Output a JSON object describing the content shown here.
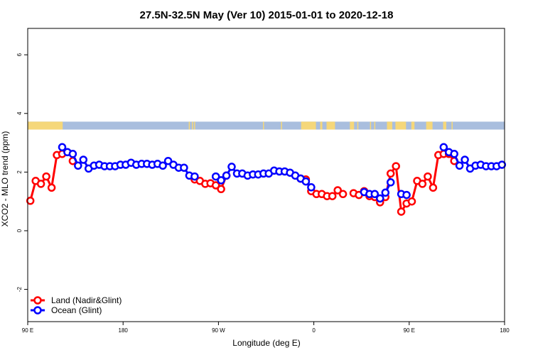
{
  "chart_data": {
    "type": "line",
    "title": "27.5N-32.5N May (Ver 10)   2015-01-01 to 2020-12-18",
    "xlabel": "Longitude (deg E)",
    "ylabel": "XCO2 - MLO trend (ppm)",
    "xlim": [
      90,
      540
    ],
    "ylim": [
      -3.1,
      6.9
    ],
    "xticks": [
      {
        "value": 90,
        "label": "90 E"
      },
      {
        "value": 180,
        "label": "180"
      },
      {
        "value": 270,
        "label": "90 W"
      },
      {
        "value": 360,
        "label": "0"
      },
      {
        "value": 450,
        "label": "90 E"
      },
      {
        "value": 540,
        "label": "180"
      }
    ],
    "yticks": [
      {
        "value": -2,
        "label": "-2"
      },
      {
        "value": 0,
        "label": "0"
      },
      {
        "value": 2,
        "label": "2"
      },
      {
        "value": 4,
        "label": "4"
      },
      {
        "value": 6,
        "label": "6"
      }
    ],
    "grid": false,
    "legend_position": "bottom-left",
    "land_ocean_band": {
      "y_range": [
        3.45,
        3.72
      ],
      "land_color": "#f5d77a",
      "ocean_color": "#a9bede",
      "land_segments": [
        [
          90,
          123
        ],
        [
          242,
          243
        ],
        [
          245,
          246
        ],
        [
          247,
          248
        ],
        [
          312,
          313
        ],
        [
          329,
          330
        ],
        [
          348,
          362
        ],
        [
          366,
          368
        ],
        [
          372,
          380
        ],
        [
          394,
          398
        ],
        [
          401,
          402
        ],
        [
          413,
          414
        ],
        [
          417,
          418
        ],
        [
          429,
          434
        ],
        [
          437,
          447
        ],
        [
          452,
          455
        ],
        [
          466,
          472
        ],
        [
          482,
          485
        ],
        [
          490,
          491
        ]
      ]
    },
    "series": [
      {
        "name": "Land (Nadir&Glint)",
        "color": "#ff0000",
        "segments": [
          {
            "x": [
              92.5,
              97.5,
              102.5,
              107.5,
              112.5,
              117.5,
              122.5
            ],
            "y": [
              1.02,
              1.7,
              1.6,
              1.85,
              1.47,
              2.58,
              2.62
            ]
          },
          {
            "x": [
              132.5
            ],
            "y": [
              2.38
            ]
          },
          {
            "x": [
              247.5,
              252.5,
              257.5,
              262.5,
              267.5,
              272.5,
              277.5
            ],
            "y": [
              1.75,
              1.7,
              1.6,
              1.62,
              1.55,
              1.42,
              1.88
            ]
          },
          {
            "x": [
              347.5,
              352.5,
              357.5,
              362.5,
              367.5,
              372.5,
              377.5,
              382.5,
              387.5
            ],
            "y": [
              1.78,
              1.75,
              1.35,
              1.25,
              1.25,
              1.18,
              1.18,
              1.38,
              1.25
            ]
          },
          {
            "x": [
              397.5,
              402.5,
              407.5,
              412.5,
              417.5,
              422.5,
              427.5,
              432.5,
              437.5,
              442.5,
              447.5,
              452.5,
              457.5,
              462.5,
              467.5,
              472.5,
              477.5,
              482.5,
              487.5,
              492.5
            ],
            "y": [
              1.28,
              1.22,
              1.35,
              1.18,
              1.15,
              0.97,
              1.15,
              1.95,
              2.2,
              0.65,
              0.93,
              1.0,
              1.7,
              1.6,
              1.85,
              1.47,
              2.58,
              2.62,
              2.62,
              2.38
            ]
          }
        ]
      },
      {
        "name": "Ocean (Glint)",
        "color": "#0000ff",
        "segments": [
          {
            "x": [
              122.5,
              127.5,
              132.5,
              137.5,
              142.5,
              147.5,
              152.5,
              157.5,
              162.5,
              167.5,
              172.5,
              177.5,
              182.5,
              187.5,
              192.5,
              197.5,
              202.5,
              207.5,
              212.5,
              217.5,
              222.5,
              227.5,
              232.5,
              237.5,
              242.5,
              247.5
            ],
            "y": [
              2.85,
              2.68,
              2.62,
              2.22,
              2.42,
              2.12,
              2.22,
              2.25,
              2.2,
              2.2,
              2.2,
              2.25,
              2.25,
              2.32,
              2.25,
              2.28,
              2.28,
              2.25,
              2.28,
              2.22,
              2.38,
              2.25,
              2.15,
              2.15,
              1.88,
              1.85
            ]
          },
          {
            "x": [
              267.5,
              272.5,
              277.5,
              282.5,
              287.5,
              292.5,
              297.5,
              302.5,
              307.5,
              312.5,
              317.5,
              322.5,
              327.5,
              332.5,
              337.5,
              342.5,
              347.5,
              352.5
            ],
            "y": [
              1.85,
              1.72,
              1.88,
              2.18,
              1.95,
              1.95,
              1.88,
              1.92,
              1.92,
              1.95,
              1.95,
              2.05,
              2.02,
              2.02,
              1.98,
              1.88,
              1.78,
              1.68
            ]
          },
          {
            "x": [
              357.5
            ],
            "y": [
              1.48
            ]
          },
          {
            "x": [
              407.5,
              412.5,
              417.5,
              422.5,
              427.5,
              432.5
            ],
            "y": [
              1.32,
              1.25,
              1.25,
              1.1,
              1.3,
              1.65
            ]
          },
          {
            "x": [
              442.5,
              447.5
            ],
            "y": [
              1.25,
              1.22
            ]
          },
          {
            "x": [
              482.5,
              487.5,
              492.5,
              497.5,
              502.5,
              507.5,
              512.5,
              517.5,
              522.5,
              527.5,
              532.5,
              537.5
            ],
            "y": [
              2.85,
              2.68,
              2.62,
              2.22,
              2.42,
              2.12,
              2.22,
              2.25,
              2.2,
              2.2,
              2.2,
              2.25
            ]
          }
        ]
      }
    ]
  }
}
